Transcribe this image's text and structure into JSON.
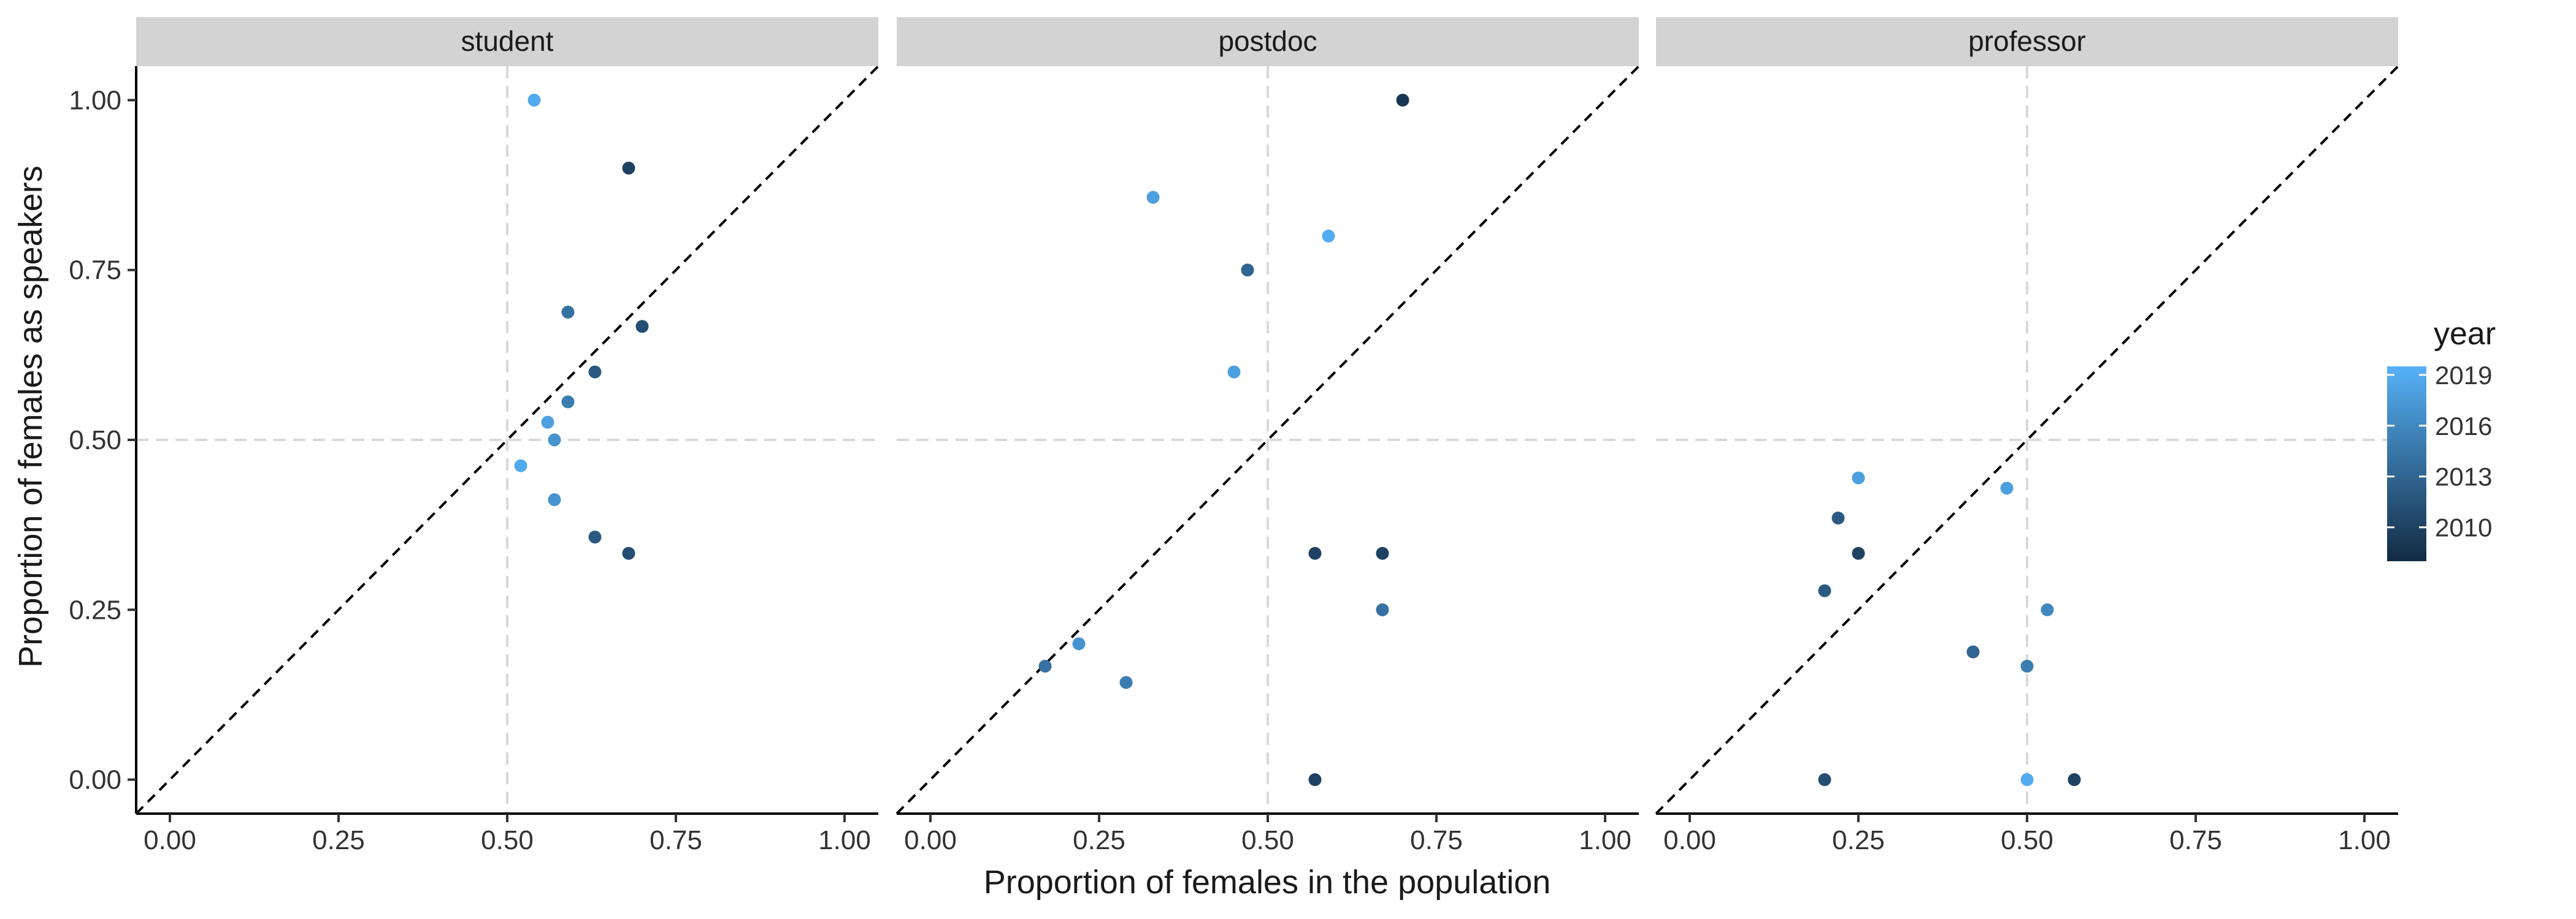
{
  "chart_data": {
    "type": "scatter",
    "xlabel": "Proportion of females in the population",
    "ylabel": "Proportion of females as speakers",
    "xlim": [
      -0.05,
      1.05
    ],
    "ylim": [
      -0.05,
      1.05
    ],
    "x_ticks": [
      "0.00",
      "0.25",
      "0.50",
      "0.75",
      "1.00"
    ],
    "y_ticks": [
      "0.00",
      "0.25",
      "0.50",
      "0.75",
      "1.00"
    ],
    "tick_values": [
      0,
      0.25,
      0.5,
      0.75,
      1
    ],
    "reference_lines": {
      "diagonal": "y = x (dashed black)",
      "vertical": 0.5,
      "horizontal": 0.5
    },
    "legend": {
      "title": "year",
      "type": "colorbar",
      "position": "right",
      "ticks": [
        "2019",
        "2016",
        "2013",
        "2010"
      ],
      "tick_values": [
        2019,
        2016,
        2013,
        2010
      ],
      "range": [
        2008,
        2019.5
      ],
      "color_low": "#132B43",
      "color_high": "#56B1F7"
    },
    "panels": [
      {
        "name": "student",
        "points": [
          {
            "x": 0.54,
            "y": 1.0,
            "year": 2019
          },
          {
            "x": 0.68,
            "y": 0.9,
            "year": 2010
          },
          {
            "x": 0.59,
            "y": 0.688,
            "year": 2014
          },
          {
            "x": 0.7,
            "y": 0.667,
            "year": 2011
          },
          {
            "x": 0.63,
            "y": 0.6,
            "year": 2012
          },
          {
            "x": 0.59,
            "y": 0.556,
            "year": 2015
          },
          {
            "x": 0.56,
            "y": 0.526,
            "year": 2018
          },
          {
            "x": 0.57,
            "y": 0.5,
            "year": 2017
          },
          {
            "x": 0.52,
            "y": 0.462,
            "year": 2019
          },
          {
            "x": 0.57,
            "y": 0.412,
            "year": 2017
          },
          {
            "x": 0.63,
            "y": 0.357,
            "year": 2012
          },
          {
            "x": 0.68,
            "y": 0.333,
            "year": 2011
          }
        ]
      },
      {
        "name": "postdoc",
        "points": [
          {
            "x": 0.7,
            "y": 1.0,
            "year": 2009
          },
          {
            "x": 0.33,
            "y": 0.857,
            "year": 2018
          },
          {
            "x": 0.59,
            "y": 0.8,
            "year": 2019
          },
          {
            "x": 0.47,
            "y": 0.75,
            "year": 2013
          },
          {
            "x": 0.45,
            "y": 0.6,
            "year": 2018
          },
          {
            "x": 0.57,
            "y": 0.333,
            "year": 2010
          },
          {
            "x": 0.67,
            "y": 0.333,
            "year": 2010
          },
          {
            "x": 0.67,
            "y": 0.25,
            "year": 2014
          },
          {
            "x": 0.22,
            "y": 0.2,
            "year": 2017
          },
          {
            "x": 0.17,
            "y": 0.167,
            "year": 2014
          },
          {
            "x": 0.29,
            "y": 0.143,
            "year": 2015
          },
          {
            "x": 0.57,
            "y": 0.0,
            "year": 2010
          }
        ]
      },
      {
        "name": "professor",
        "points": [
          {
            "x": 0.25,
            "y": 0.444,
            "year": 2018
          },
          {
            "x": 0.47,
            "y": 0.429,
            "year": 2018
          },
          {
            "x": 0.22,
            "y": 0.385,
            "year": 2012
          },
          {
            "x": 0.25,
            "y": 0.333,
            "year": 2010
          },
          {
            "x": 0.2,
            "y": 0.278,
            "year": 2012
          },
          {
            "x": 0.53,
            "y": 0.25,
            "year": 2016
          },
          {
            "x": 0.42,
            "y": 0.188,
            "year": 2013
          },
          {
            "x": 0.5,
            "y": 0.167,
            "year": 2015
          },
          {
            "x": 0.2,
            "y": 0.0,
            "year": 2011
          },
          {
            "x": 0.5,
            "y": 0.0,
            "year": 2019
          },
          {
            "x": 0.57,
            "y": 0.0,
            "year": 2010
          }
        ]
      }
    ]
  }
}
